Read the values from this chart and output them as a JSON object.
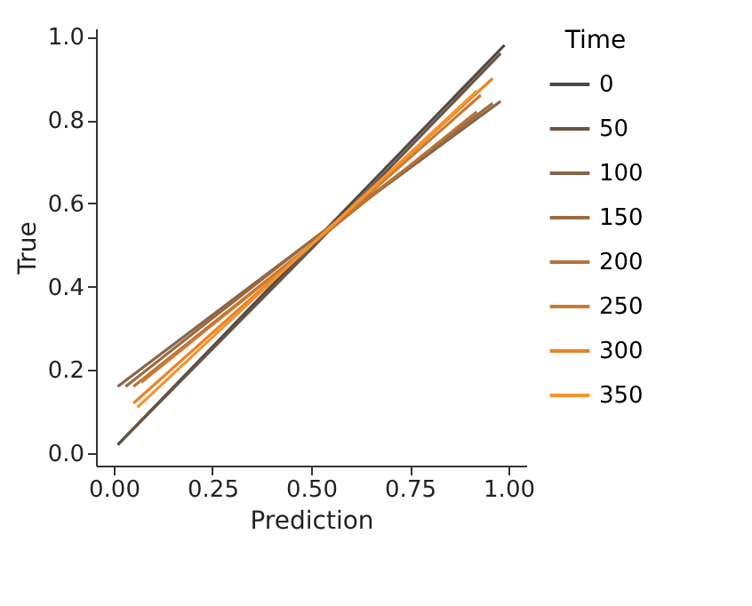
{
  "chart_data": {
    "type": "line",
    "xlabel": "Prediction",
    "ylabel": "True",
    "legend_title": "Time",
    "legend": "right",
    "grid": false,
    "xlim": [
      -0.045,
      1.045
    ],
    "ylim": [
      -0.03,
      1.02
    ],
    "xticks": [
      {
        "value": 0,
        "label": "0.00"
      },
      {
        "value": 0.25,
        "label": "0.25"
      },
      {
        "value": 0.5,
        "label": "0.50"
      },
      {
        "value": 0.75,
        "label": "0.75"
      },
      {
        "value": 1,
        "label": "1.00"
      }
    ],
    "yticks": [
      {
        "value": 0,
        "label": "0.0"
      },
      {
        "value": 0.2,
        "label": "0.2"
      },
      {
        "value": 0.4,
        "label": "0.4"
      },
      {
        "value": 0.6,
        "label": "0.6"
      },
      {
        "value": 0.8,
        "label": "0.8"
      },
      {
        "value": 1,
        "label": "1.0"
      }
    ],
    "series": [
      {
        "name": "0",
        "color": "#4f4a47",
        "x": [
          0.01,
          0.5,
          0.99
        ],
        "values": [
          0.02,
          0.5,
          0.98
        ]
      },
      {
        "name": "50",
        "color": "#6b5443",
        "x": [
          0.02,
          0.5,
          0.98
        ],
        "values": [
          0.03,
          0.49,
          0.96
        ]
      },
      {
        "name": "100",
        "color": "#86664a",
        "x": [
          0.01,
          0.5,
          0.98
        ],
        "values": [
          0.16,
          0.51,
          0.845
        ]
      },
      {
        "name": "150",
        "color": "#9b6a42",
        "x": [
          0.03,
          0.5,
          0.96
        ],
        "values": [
          0.16,
          0.51,
          0.84
        ]
      },
      {
        "name": "200",
        "color": "#b87338",
        "x": [
          0.05,
          0.5,
          0.92
        ],
        "values": [
          0.16,
          0.5,
          0.82
        ]
      },
      {
        "name": "250",
        "color": "#cc7a30",
        "x": [
          0.07,
          0.5,
          0.93
        ],
        "values": [
          0.17,
          0.5,
          0.86
        ]
      },
      {
        "name": "300",
        "color": "#e88426",
        "x": [
          0.05,
          0.5,
          0.96
        ],
        "values": [
          0.12,
          0.5,
          0.9
        ]
      },
      {
        "name": "350",
        "color": "#f7922e",
        "x": [
          0.06,
          0.5,
          0.92
        ],
        "values": [
          0.11,
          0.5,
          0.87
        ]
      }
    ]
  }
}
